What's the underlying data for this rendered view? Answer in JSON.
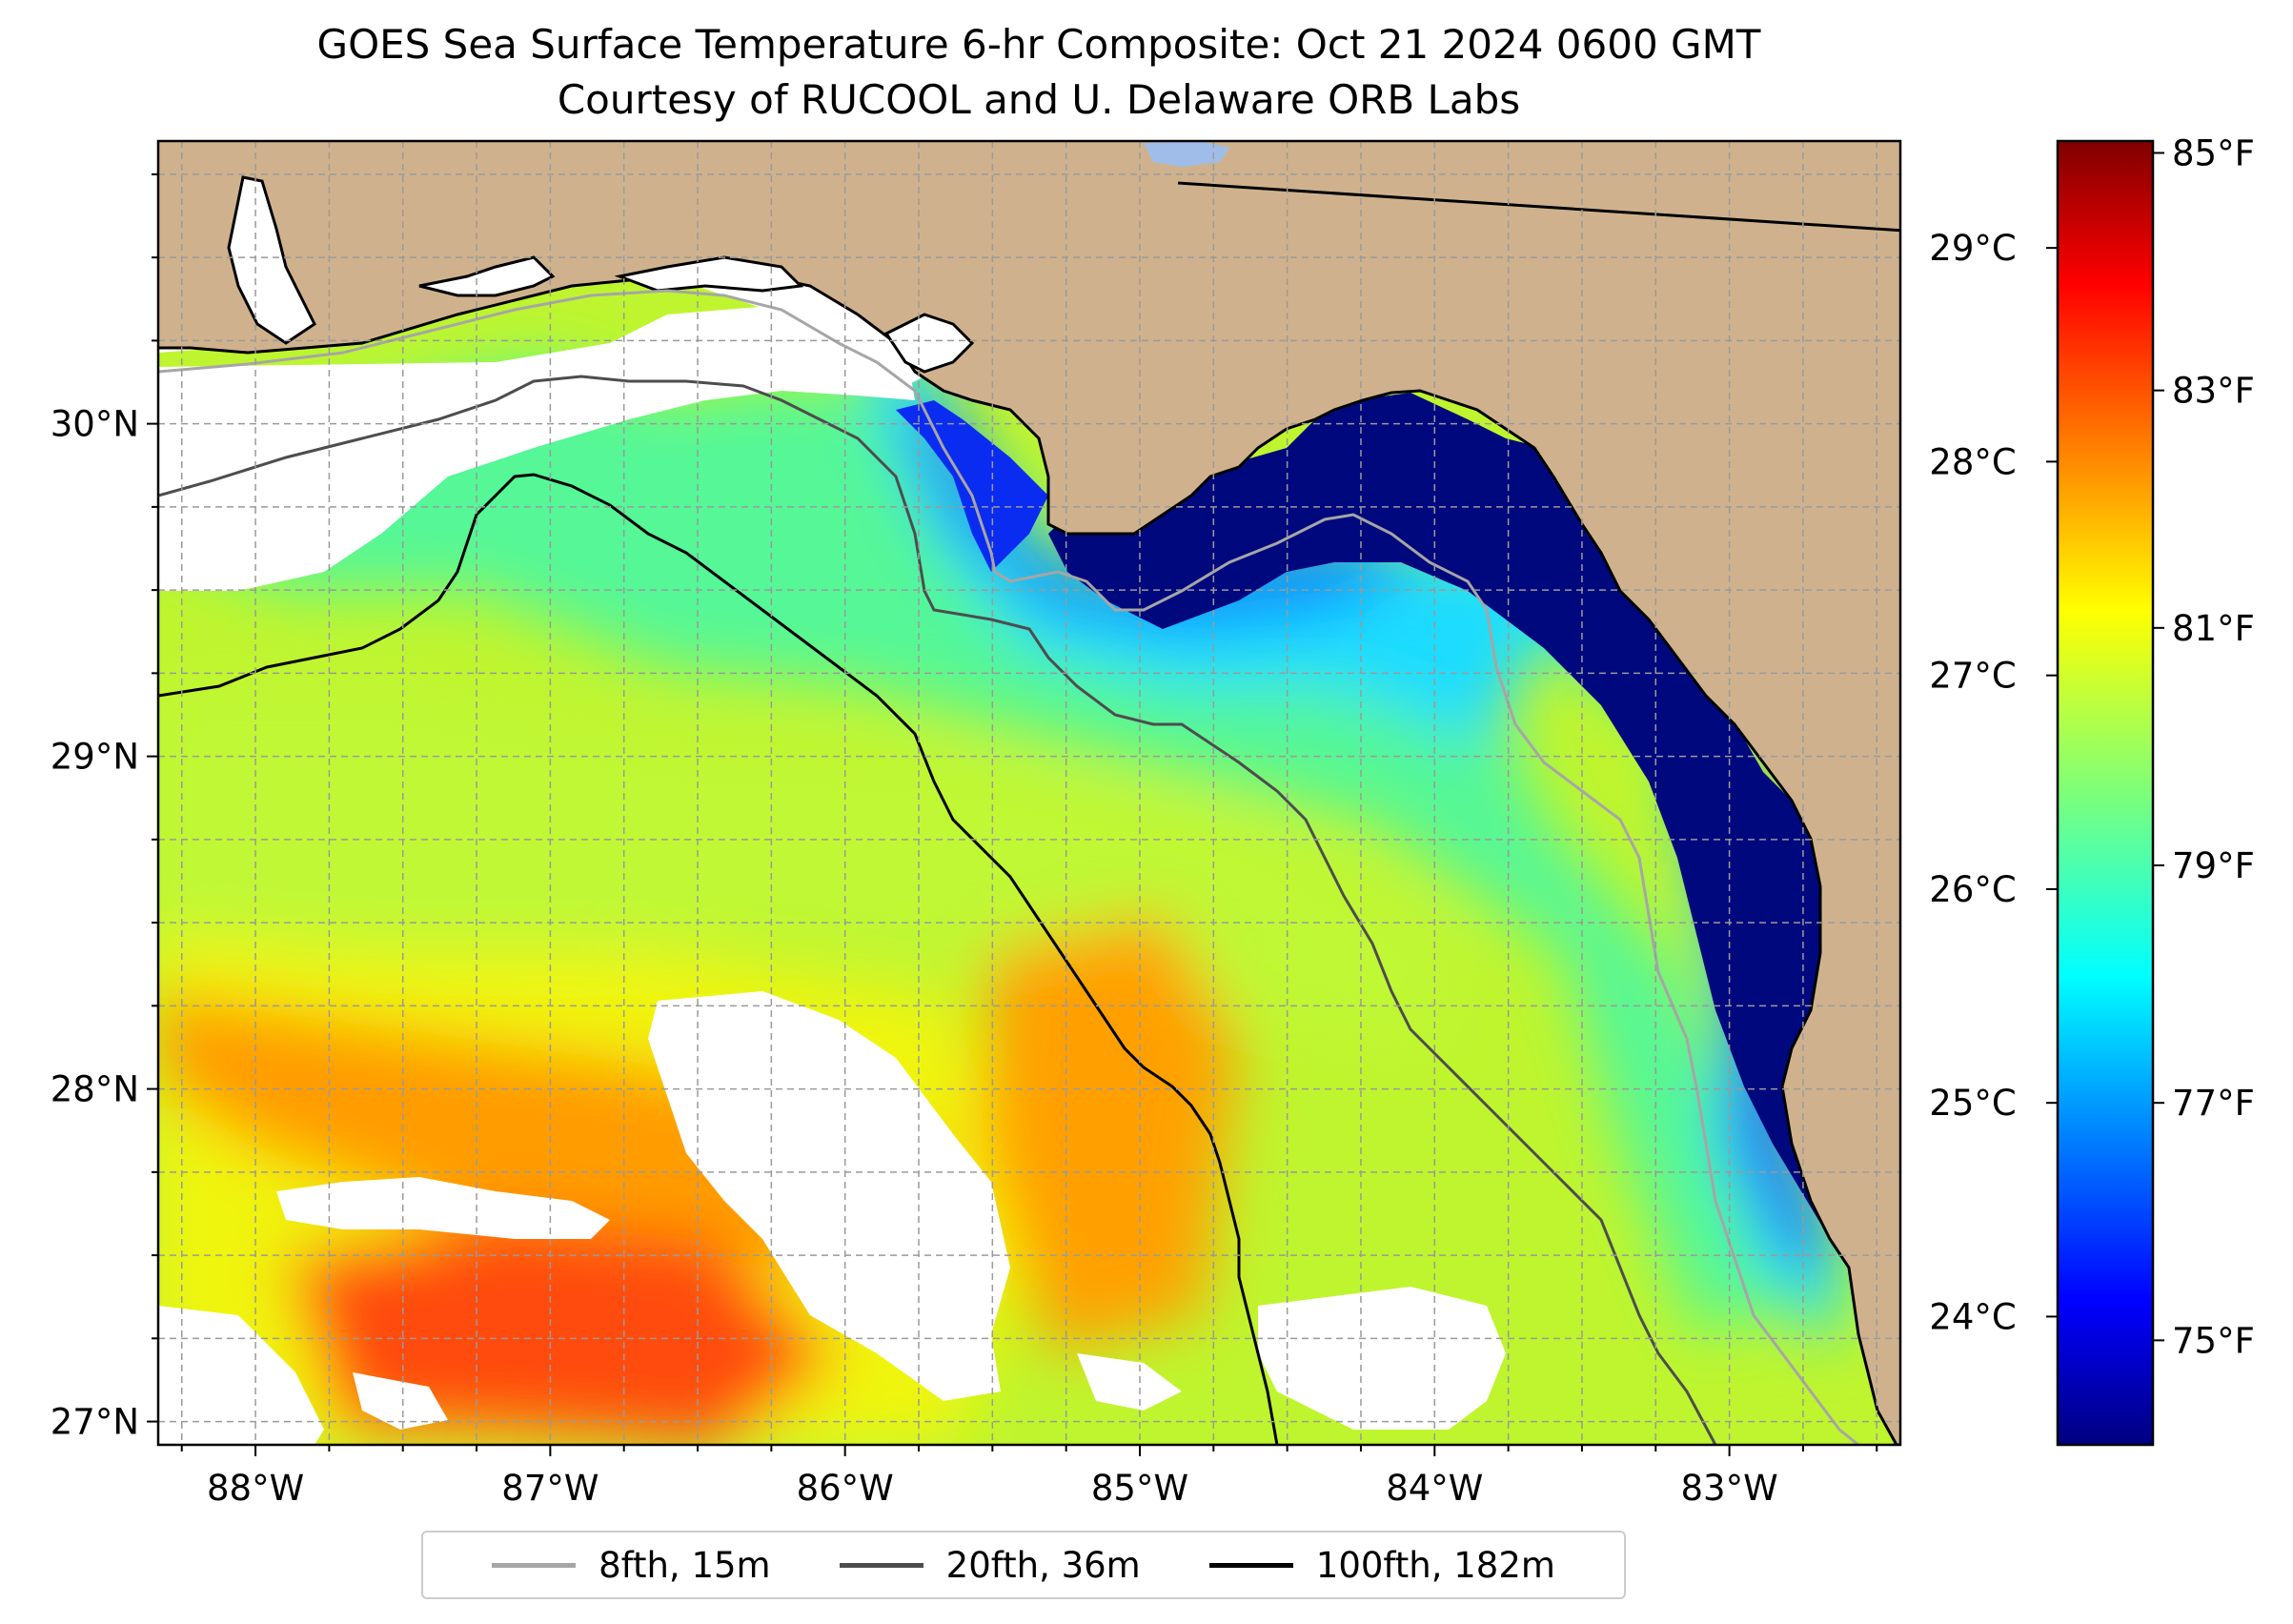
{
  "title": "GOES Sea Surface Temperature 6-hr Composite: Oct 21 2024 0600 GMT",
  "subtitle": "Courtesy of RUCOOL and U. Delaware ORB Labs",
  "map": {
    "extent": {
      "lon": [
        -88.33,
        -82.42
      ],
      "lat": [
        26.93,
        30.85
      ]
    },
    "lon_ticks": [
      {
        "value": -88,
        "label": "88°W"
      },
      {
        "value": -87,
        "label": "87°W"
      },
      {
        "value": -86,
        "label": "86°W"
      },
      {
        "value": -85,
        "label": "85°W"
      },
      {
        "value": -84,
        "label": "84°W"
      },
      {
        "value": -83,
        "label": "83°W"
      }
    ],
    "lat_ticks": [
      {
        "value": 27,
        "label": "27°N"
      },
      {
        "value": 28,
        "label": "28°N"
      },
      {
        "value": 29,
        "label": "29°N"
      },
      {
        "value": 30,
        "label": "30°N"
      }
    ],
    "land_color": "#cfb28d",
    "missing_color": "#ffffff",
    "gridlines": "dashed"
  },
  "colorbar": {
    "colormap": "jet",
    "range_c": [
      23.4,
      29.5
    ],
    "celsius_ticks": [
      {
        "value": 24,
        "label": "24°C"
      },
      {
        "value": 25,
        "label": "25°C"
      },
      {
        "value": 26,
        "label": "26°C"
      },
      {
        "value": 27,
        "label": "27°C"
      },
      {
        "value": 28,
        "label": "28°C"
      },
      {
        "value": 29,
        "label": "29°C"
      }
    ],
    "fahrenheit_ticks": [
      {
        "value": 75,
        "label": "75°F"
      },
      {
        "value": 77,
        "label": "77°F"
      },
      {
        "value": 79,
        "label": "79°F"
      },
      {
        "value": 81,
        "label": "81°F"
      },
      {
        "value": 83,
        "label": "83°F"
      },
      {
        "value": 85,
        "label": "85°F"
      }
    ]
  },
  "legend": {
    "placement": "bottom-center",
    "items": [
      {
        "label": "8fth, 15m",
        "color": "#a6a6a6"
      },
      {
        "label": "20fth, 36m",
        "color": "#4d4d4d"
      },
      {
        "label": "100fth, 182m",
        "color": "#000000"
      }
    ]
  }
}
